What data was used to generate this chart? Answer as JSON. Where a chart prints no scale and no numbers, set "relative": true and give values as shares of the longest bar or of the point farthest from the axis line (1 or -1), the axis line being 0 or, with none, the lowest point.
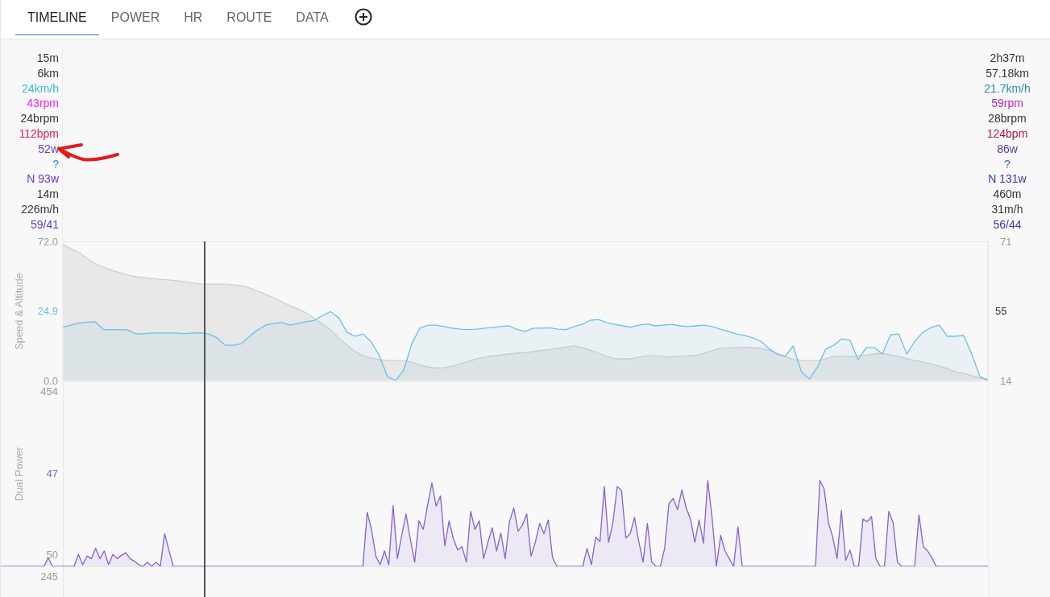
{
  "chart_data": [
    {
      "type": "other",
      "annotations": [
        "TIMELINE",
        "POWER",
        "HR",
        "ROUTE",
        "DATA"
      ],
      "colors": [
        "#222222",
        "#666666",
        "#666666",
        "#666666",
        "#666666"
      ]
    },
    {
      "type": "other",
      "annotations": [
        "15m",
        "6km",
        "24km/h",
        "43rpm",
        "24brpm",
        "112bpm",
        "52w",
        "?",
        "N 93w",
        "14m",
        "226m/h",
        "59/41"
      ],
      "colors": [
        "#333333",
        "#333333",
        "#3db4e8",
        "#ff1aff",
        "#333333",
        "#e8204f",
        "#6a3ad6",
        "#2196f3",
        "#6a3ad6",
        "#333333",
        "#333333",
        "#6a3ad6"
      ]
    },
    {
      "type": "other",
      "annotations": [
        "2h37m",
        "57.18km",
        "21.7km/h",
        "59rpm",
        "28brpm",
        "124bpm",
        "86w",
        "?",
        "N 131w",
        "460m",
        "31m/h",
        "56/44"
      ],
      "colors": [
        "#333333",
        "#333333",
        "#2b87b5",
        "#c41fc4",
        "#333333",
        "#b5153f",
        "#5b37b0",
        "#2a6fb8",
        "#4d2fa3",
        "#333333",
        "#333333",
        "#4d2fa3"
      ]
    },
    {
      "type": "area",
      "ylabel": "Speed & Altitude",
      "categories": [
        null,
        null,
        null,
        null,
        null,
        null,
        null,
        null,
        null,
        null,
        null,
        null,
        null,
        null,
        null,
        null,
        null,
        null,
        null,
        null,
        null,
        null,
        null,
        null,
        null,
        null,
        null,
        null,
        null,
        null,
        null,
        null,
        null,
        null,
        null,
        null,
        null,
        null,
        null,
        null,
        null,
        null,
        null,
        null,
        null,
        null,
        null,
        null,
        null,
        null,
        null,
        null,
        null,
        null,
        null,
        null,
        null,
        null,
        null,
        null,
        null,
        null,
        null,
        null,
        null,
        null,
        null,
        null,
        null,
        null,
        null,
        null,
        null,
        null,
        null,
        null,
        null,
        null,
        null,
        null,
        null,
        null,
        null,
        null,
        null,
        null,
        null,
        null,
        null,
        null,
        null,
        null,
        null,
        null,
        null,
        null,
        null,
        null,
        null,
        null,
        null,
        null,
        null,
        null,
        null,
        null,
        null,
        null,
        null,
        null,
        null,
        null,
        null,
        null,
        null
      ],
      "series": [
        {
          "color": "#cfcfcf",
          "axis": "y2",
          "values": [
            69.7,
            68.0,
            66.4,
            64.1,
            61.8,
            60.5,
            59.2,
            58.2,
            57.2,
            56.5,
            56.2,
            55.8,
            55.5,
            55.2,
            54.9,
            54.5,
            53.9,
            53.5,
            53.5,
            53.5,
            53.5,
            53.2,
            52.9,
            51.9,
            50.6,
            49.3,
            47.9,
            46.3,
            44.6,
            43.3,
            41.7,
            39.4,
            37.1,
            34.8,
            31.5,
            28.5,
            25.9,
            24.2,
            23.2,
            22.6,
            22.2,
            22.2,
            22.2,
            21.6,
            20.3,
            19.6,
            19.1,
            19.3,
            19.9,
            20.9,
            21.9,
            22.9,
            23.6,
            24.2,
            24.5,
            24.9,
            25.2,
            25.5,
            25.9,
            26.4,
            26.7,
            27.2,
            27.7,
            28.2,
            27.5,
            26.5,
            25.2,
            23.9,
            22.9,
            22.9,
            22.9,
            23.6,
            24.2,
            24.2,
            23.9,
            23.6,
            23.9,
            24.2,
            24.3,
            25.2,
            26.2,
            27.2,
            27.5,
            27.5,
            27.6,
            27.5,
            27.2,
            26.4,
            25.2,
            23.9,
            22.6,
            22.2,
            22.2,
            22.2,
            22.9,
            23.9,
            23.9,
            23.9,
            24.2,
            24.5,
            24.9,
            25.2,
            24.5,
            23.9,
            22.9,
            22.2,
            21.6,
            20.9,
            19.9,
            18.9,
            17.6,
            17.0,
            16.0,
            15.0,
            14.7
          ]
        },
        {
          "color": "#6cbfe6",
          "values": [
            27.6,
            28.7,
            29.8,
            30.2,
            30.4,
            26.4,
            26.4,
            26.4,
            26.2,
            24.1,
            24.3,
            24.6,
            24.6,
            24.6,
            24.6,
            24.3,
            24.6,
            24.7,
            24.1,
            22.1,
            18.3,
            18.3,
            19.1,
            22.9,
            26.2,
            28.7,
            29.6,
            30.0,
            28.7,
            29.6,
            30.4,
            31.2,
            33.7,
            35.6,
            32.5,
            25.0,
            22.9,
            24.1,
            20.0,
            12.9,
            2.1,
            0,
            5.4,
            19.1,
            27.1,
            28.7,
            28.7,
            27.9,
            27.1,
            26.6,
            26.4,
            26.6,
            27.1,
            27.5,
            27.9,
            28.3,
            26.4,
            25.4,
            27.1,
            27.1,
            27.3,
            26.6,
            26.4,
            27.9,
            29.1,
            31.2,
            31.6,
            30.0,
            29.1,
            28.3,
            27.6,
            28.7,
            29.3,
            28.3,
            28.7,
            29.1,
            28.3,
            27.9,
            28.3,
            28.7,
            27.9,
            26.6,
            25.4,
            24.1,
            23.4,
            22.1,
            20.4,
            16.6,
            13.7,
            12.5,
            17.9,
            4.6,
            0.8,
            7.1,
            16.2,
            18.3,
            21.6,
            20.8,
            10.8,
            17.1,
            17.1,
            13.7,
            23.7,
            24.1,
            13.7,
            20.4,
            25.0,
            27.5,
            28.7,
            22.9,
            22.9,
            23.3,
            13.7,
            2.1,
            0
          ]
        }
      ],
      "ylim": [
        0,
        72
      ],
      "yticks": [
        {
          "value": 0,
          "label": "0.0"
        },
        {
          "value": 72,
          "label": "72.0"
        }
      ],
      "y2lim": [
        14,
        71
      ],
      "y2ticks": [
        14,
        71
      ],
      "tick_labels": "y",
      "annotations": [
        "24.9",
        "55"
      ]
    },
    {
      "type": "area",
      "ylabel": "Dual Power",
      "relative": true,
      "categories": [
        null,
        null,
        null,
        null,
        null,
        null,
        null,
        null,
        null,
        null,
        null,
        null,
        null,
        null,
        null,
        null,
        null,
        null,
        null,
        null,
        null,
        null,
        null,
        null,
        null,
        null,
        null,
        null,
        null,
        null,
        null,
        null,
        null,
        null,
        null,
        null,
        null,
        null,
        null,
        null,
        null,
        null,
        null,
        null,
        null,
        null,
        null,
        null,
        null,
        null,
        null,
        null,
        null,
        null,
        null,
        null,
        null,
        null,
        null,
        null,
        null,
        null,
        null,
        null,
        null,
        null,
        null,
        null,
        null,
        null,
        null,
        null,
        null,
        null,
        null,
        null,
        null,
        null,
        null,
        null,
        null,
        null,
        null,
        null,
        null,
        null,
        null,
        null,
        null,
        null,
        null,
        null,
        null,
        null,
        null,
        null,
        null,
        null,
        null,
        null,
        null,
        null,
        null,
        null,
        null,
        null,
        null,
        null,
        null,
        null,
        null,
        null,
        null,
        null,
        null,
        null,
        null,
        null,
        null,
        null,
        null,
        null,
        null,
        null,
        null,
        null,
        null,
        null,
        null,
        null,
        null,
        null,
        null,
        null,
        null,
        null,
        null,
        null,
        null,
        null,
        null,
        null,
        null,
        null,
        null,
        null,
        null,
        null,
        null,
        null,
        null,
        null,
        null,
        null,
        null,
        null,
        null,
        null,
        null,
        null,
        null,
        null,
        null,
        null,
        null,
        null,
        null,
        null,
        null,
        null,
        null,
        null,
        null,
        null,
        null,
        null,
        null,
        null,
        null,
        null,
        null,
        null,
        null,
        null,
        null,
        null,
        null,
        null,
        null,
        null,
        null,
        null,
        null,
        null,
        null,
        null,
        null,
        null,
        null,
        null,
        null,
        null,
        null,
        null,
        null,
        null,
        null,
        null,
        null,
        null,
        null,
        null,
        null,
        null,
        null,
        null,
        null,
        null,
        null,
        null,
        null,
        null,
        null,
        null,
        null,
        null,
        null,
        null,
        null,
        null
      ],
      "series": [
        {
          "color": "#8a5fd6",
          "values": [
            0,
            0,
            0,
            0,
            0,
            0,
            0,
            0,
            0,
            0,
            0,
            0.1,
            0,
            0,
            0,
            0,
            0,
            0,
            0.14,
            0.02,
            0.12,
            0.09,
            0.21,
            0.09,
            0.18,
            0.02,
            0.14,
            0.09,
            0.13,
            0.16,
            0.09,
            0.06,
            0.02,
            0,
            0.05,
            0,
            0.05,
            0,
            0.38,
            0.19,
            0,
            0,
            0,
            0,
            0,
            0,
            0,
            0,
            0,
            0,
            0,
            0,
            0,
            0,
            0,
            0,
            0,
            0,
            0,
            0,
            0,
            0,
            0,
            0,
            0,
            0,
            0,
            0,
            0,
            0,
            0,
            0,
            0,
            0,
            0,
            0,
            0,
            0,
            0,
            0,
            0,
            0,
            0,
            0,
            0,
            0.63,
            0.43,
            0.12,
            0.02,
            0.18,
            0.02,
            0.71,
            0.09,
            0.36,
            0.61,
            0.32,
            0.05,
            0.53,
            0.43,
            0.71,
            0.97,
            0.7,
            0.82,
            0.24,
            0.53,
            0.32,
            0.19,
            0.23,
            0.05,
            0.64,
            0.43,
            0.53,
            0.09,
            0.28,
            0.45,
            0.18,
            0.39,
            0.09,
            0.52,
            0.68,
            0.41,
            0.48,
            0.61,
            0.12,
            0.28,
            0.5,
            0.38,
            0.54,
            0.1,
            0,
            0,
            0,
            0,
            0,
            0,
            0,
            0.21,
            0.02,
            0.34,
            0.29,
            0.93,
            0.28,
            0.51,
            0.93,
            0.88,
            0.33,
            0.38,
            0.57,
            0.29,
            0.05,
            0.5,
            0.05,
            0,
            0,
            0.21,
            0.73,
            0.79,
            0.66,
            0.89,
            0.68,
            0.55,
            0.28,
            0.54,
            0.27,
            1,
            0.57,
            0,
            0.36,
            0.18,
            0.09,
            0,
            0.46,
            0,
            0,
            0,
            0,
            0,
            0,
            0,
            0,
            0,
            0,
            0,
            0,
            0,
            0,
            0,
            0,
            0,
            0,
            1,
            0.9,
            0.51,
            0.34,
            0.09,
            0.65,
            0.07,
            0.19,
            0,
            0,
            0.55,
            0.52,
            0.58,
            0.09,
            0,
            0,
            0.64,
            0.51,
            0.05,
            0,
            0,
            0,
            0,
            0.6,
            0.23,
            0.18,
            0.1,
            0,
            0,
            0,
            0,
            0,
            0,
            0,
            0,
            0,
            0,
            0,
            0,
            0
          ]
        }
      ],
      "tick_labels": "y",
      "annotations": [
        "454",
        "47",
        "50",
        "245"
      ]
    }
  ]
}
